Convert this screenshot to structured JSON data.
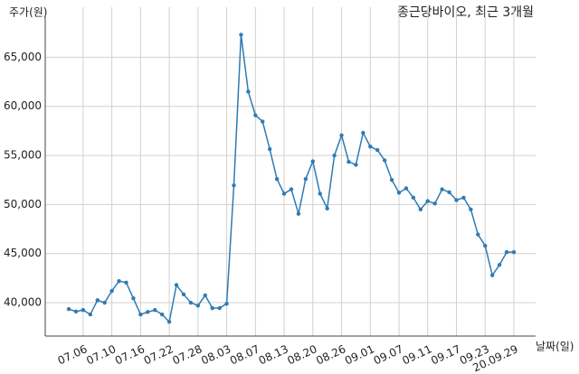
{
  "chart_data": {
    "type": "line",
    "title": "종근당바이오, 최근 3개월",
    "y_label": "주가(원)",
    "x_label": "날짜(일)",
    "categories": [
      null,
      null,
      "07.06",
      null,
      null,
      null,
      "07.10",
      null,
      null,
      null,
      "07.16",
      null,
      null,
      null,
      "07.22",
      null,
      null,
      null,
      "07.28",
      null,
      null,
      null,
      "08.03",
      null,
      null,
      null,
      "08.07",
      null,
      null,
      null,
      "08.13",
      null,
      null,
      null,
      "08.20",
      null,
      null,
      null,
      "08.26",
      null,
      null,
      null,
      "09.01",
      null,
      null,
      null,
      "09.07",
      null,
      null,
      null,
      "09.11",
      null,
      null,
      null,
      "09.17",
      null,
      null,
      null,
      "09.23",
      null,
      null,
      null,
      "20.09.29"
    ],
    "values": [
      39350,
      39100,
      39250,
      38800,
      40250,
      40000,
      41200,
      42200,
      42050,
      40450,
      38800,
      39050,
      39250,
      38800,
      38050,
      41800,
      40850,
      40000,
      39700,
      40750,
      39450,
      39450,
      39900,
      51950,
      67300,
      61500,
      59100,
      58450,
      55650,
      52600,
      51100,
      51550,
      49050,
      52600,
      54400,
      51100,
      49600,
      55000,
      57050,
      54350,
      54050,
      57300,
      55900,
      55550,
      54500,
      52500,
      51200,
      51650,
      50700,
      49500,
      50350,
      50100,
      51550,
      51250,
      50450,
      50700,
      49500,
      46950,
      45800,
      42800,
      43850,
      45150,
      45150
    ],
    "color": "#2e7bb4",
    "ylim": [
      36600,
      70100
    ],
    "yticks": [
      {
        "value": 40000,
        "label": "40,000"
      },
      {
        "value": 45000,
        "label": "45,000"
      },
      {
        "value": 50000,
        "label": "50,000"
      },
      {
        "value": 55000,
        "label": "55,000"
      },
      {
        "value": 60000,
        "label": "60,000"
      },
      {
        "value": 65000,
        "label": "65,000"
      }
    ],
    "grid": true
  }
}
